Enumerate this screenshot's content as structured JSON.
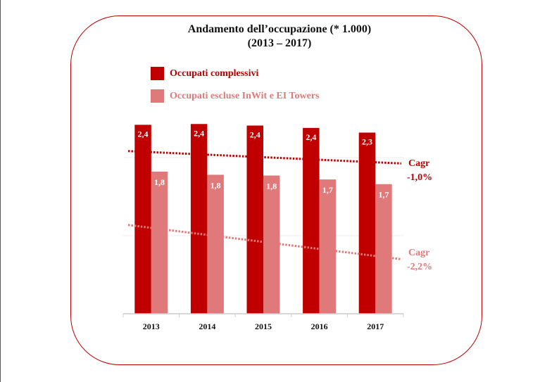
{
  "colors": {
    "primary": "#c00000",
    "secondary": "#e07a7a",
    "frame": "#c00000"
  },
  "chart_data": {
    "type": "bar",
    "title": "Andamento dell’occupazione (* 1.000)",
    "subtitle": "(2013 – 2017)",
    "categories": [
      "2013",
      "2014",
      "2015",
      "2016",
      "2017"
    ],
    "series": [
      {
        "name": "Occupati complessivi",
        "values": [
          2.42,
          2.43,
          2.41,
          2.38,
          2.32
        ],
        "labels": [
          "2,4",
          "2,4",
          "2,4",
          "2,4",
          "2,3"
        ]
      },
      {
        "name": "Occupati escluse InWit e EI Towers",
        "values": [
          1.82,
          1.78,
          1.77,
          1.72,
          1.66
        ],
        "labels": [
          "1,8",
          "1,8",
          "1,8",
          "1,7",
          "1,7"
        ]
      }
    ],
    "trendlines": [
      {
        "series": "Occupati complessivi",
        "start": 2.07,
        "end": 1.94,
        "label1": "Cagr",
        "label2": "-1,0%"
      },
      {
        "series": "Occupati escluse InWit e EI Towers",
        "start": 1.1,
        "end": 0.74,
        "label1": "Cagr",
        "label2": "-2,2%"
      }
    ],
    "ylim": [
      0,
      2.5
    ],
    "gridlines": [
      1,
      2
    ],
    "legend": "top-left",
    "xlabel": "",
    "ylabel": ""
  }
}
